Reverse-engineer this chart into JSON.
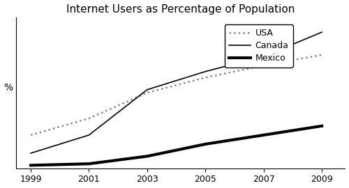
{
  "title": "Internet Users as Percentage of Population",
  "ylabel": "%",
  "years": [
    1999,
    2001,
    2003,
    2005,
    2007,
    2009
  ],
  "usa": [
    22,
    33,
    50,
    60,
    68,
    75
  ],
  "canada": [
    10,
    22,
    52,
    64,
    74,
    90
  ],
  "mexico": [
    2,
    3,
    8,
    16,
    22,
    28
  ],
  "ylim": [
    0,
    100
  ],
  "xlim": [
    1998.5,
    2009.8
  ],
  "xticks": [
    1999,
    2001,
    2003,
    2005,
    2007,
    2009
  ],
  "usa_color": "#888888",
  "canada_color": "#000000",
  "mexico_color": "#000000",
  "background_color": "#ffffff",
  "legend_labels": [
    "USA",
    "Canada",
    "Mexico"
  ],
  "title_fontsize": 11
}
